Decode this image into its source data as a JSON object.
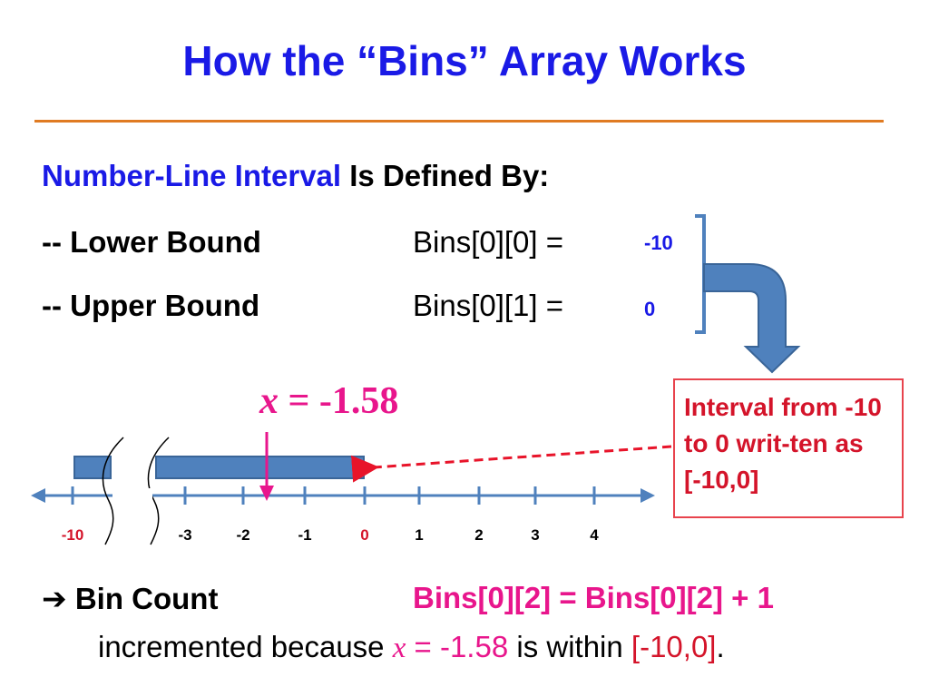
{
  "title": "How the “Bins” Array Works",
  "heading": {
    "highlight": "Number-Line Interval",
    "rest": "Is Defined By:"
  },
  "lower": {
    "label": "-- Lower Bound",
    "expr": "Bins[0][0]  =",
    "value": "-10"
  },
  "upper": {
    "label": "-- Upper Bound",
    "expr": "Bins[0][1]  =",
    "value": "0"
  },
  "x_marker": {
    "var": "x",
    "rest": " = -1.58",
    "value": -1.58
  },
  "callout": "Interval from -10 to 0 writ-ten as [-10,0]",
  "number_line": {
    "ticks": [
      {
        "label": "-10",
        "color": "#d4142a"
      },
      {
        "label": "-3",
        "color": "#000000"
      },
      {
        "label": "-2",
        "color": "#000000"
      },
      {
        "label": "-1",
        "color": "#000000"
      },
      {
        "label": "0",
        "color": "#d4142a"
      },
      {
        "label": "1",
        "color": "#000000"
      },
      {
        "label": "2",
        "color": "#000000"
      },
      {
        "label": "3",
        "color": "#000000"
      },
      {
        "label": "4",
        "color": "#000000"
      }
    ],
    "interval": [
      -10,
      0
    ]
  },
  "bin_count": {
    "arrow_glyph": "➔",
    "label": "Bin Count",
    "formula": "Bins[0][2]  = Bins[0][2] + 1",
    "sentence_a": "incremented because ",
    "sentence_var": "x",
    "sentence_b": " = -1.58",
    "sentence_c": " is within ",
    "sentence_interval": "[-10,0]",
    "sentence_end": "."
  },
  "colors": {
    "title": "#1a1ae6",
    "accent_pink": "#e8168c",
    "accent_red": "#d4142a",
    "bar_fill": "#4f81bd",
    "rule": "#e07b22"
  }
}
